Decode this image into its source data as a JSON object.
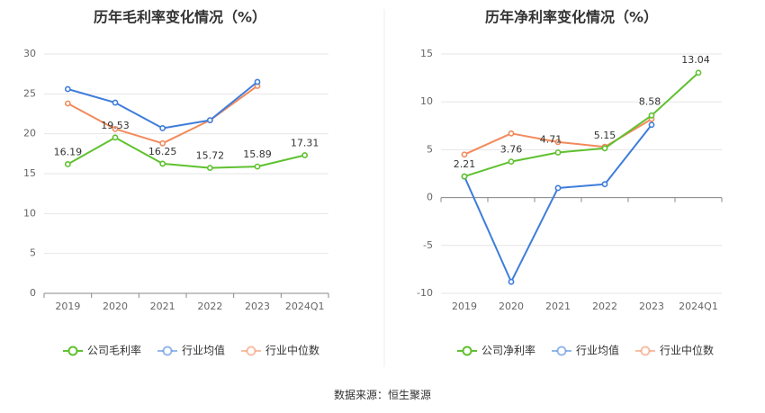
{
  "source_text": "数据来源：恒生聚源",
  "chart_data": [
    {
      "type": "line",
      "title": "历年毛利率变化情况（%）",
      "categories": [
        "2019",
        "2020",
        "2021",
        "2022",
        "2023",
        "2024Q1"
      ],
      "ylim": [
        0,
        30
      ],
      "yticks": [
        0,
        5,
        10,
        15,
        20,
        25,
        30
      ],
      "grid": true,
      "legend_position": "bottom-center",
      "series": [
        {
          "name": "公司毛利率",
          "color": "#5fc12f",
          "values": [
            16.19,
            19.53,
            16.25,
            15.72,
            15.89,
            17.31
          ],
          "labels": [
            "16.19",
            "19.53",
            "16.25",
            "15.72",
            "15.89",
            "17.31"
          ]
        },
        {
          "name": "行业均值",
          "color": "#3f7ddb",
          "values": [
            25.6,
            23.9,
            20.7,
            21.7,
            26.5,
            null
          ]
        },
        {
          "name": "行业中位数",
          "color": "#f28a5c",
          "values": [
            23.8,
            20.6,
            18.8,
            21.7,
            26.0,
            null
          ]
        }
      ]
    },
    {
      "type": "line",
      "title": "历年净利率变化情况（%）",
      "categories": [
        "2019",
        "2020",
        "2021",
        "2022",
        "2023",
        "2024Q1"
      ],
      "ylim": [
        -10,
        15
      ],
      "yticks": [
        -10,
        -5,
        0,
        5,
        10,
        15
      ],
      "grid": true,
      "legend_position": "bottom-center",
      "series": [
        {
          "name": "公司净利率",
          "color": "#5fc12f",
          "values": [
            2.21,
            3.76,
            4.71,
            5.15,
            8.58,
            13.04
          ],
          "labels": [
            "2.21",
            "3.76",
            "4.71",
            "5.15",
            "8.58",
            "13.04"
          ]
        },
        {
          "name": "行业均值",
          "color": "#3f7ddb",
          "values": [
            2.2,
            -8.8,
            1.0,
            1.4,
            7.6,
            null
          ]
        },
        {
          "name": "行业中位数",
          "color": "#f28a5c",
          "values": [
            4.5,
            6.7,
            5.8,
            5.3,
            8.2,
            null
          ]
        }
      ]
    }
  ]
}
